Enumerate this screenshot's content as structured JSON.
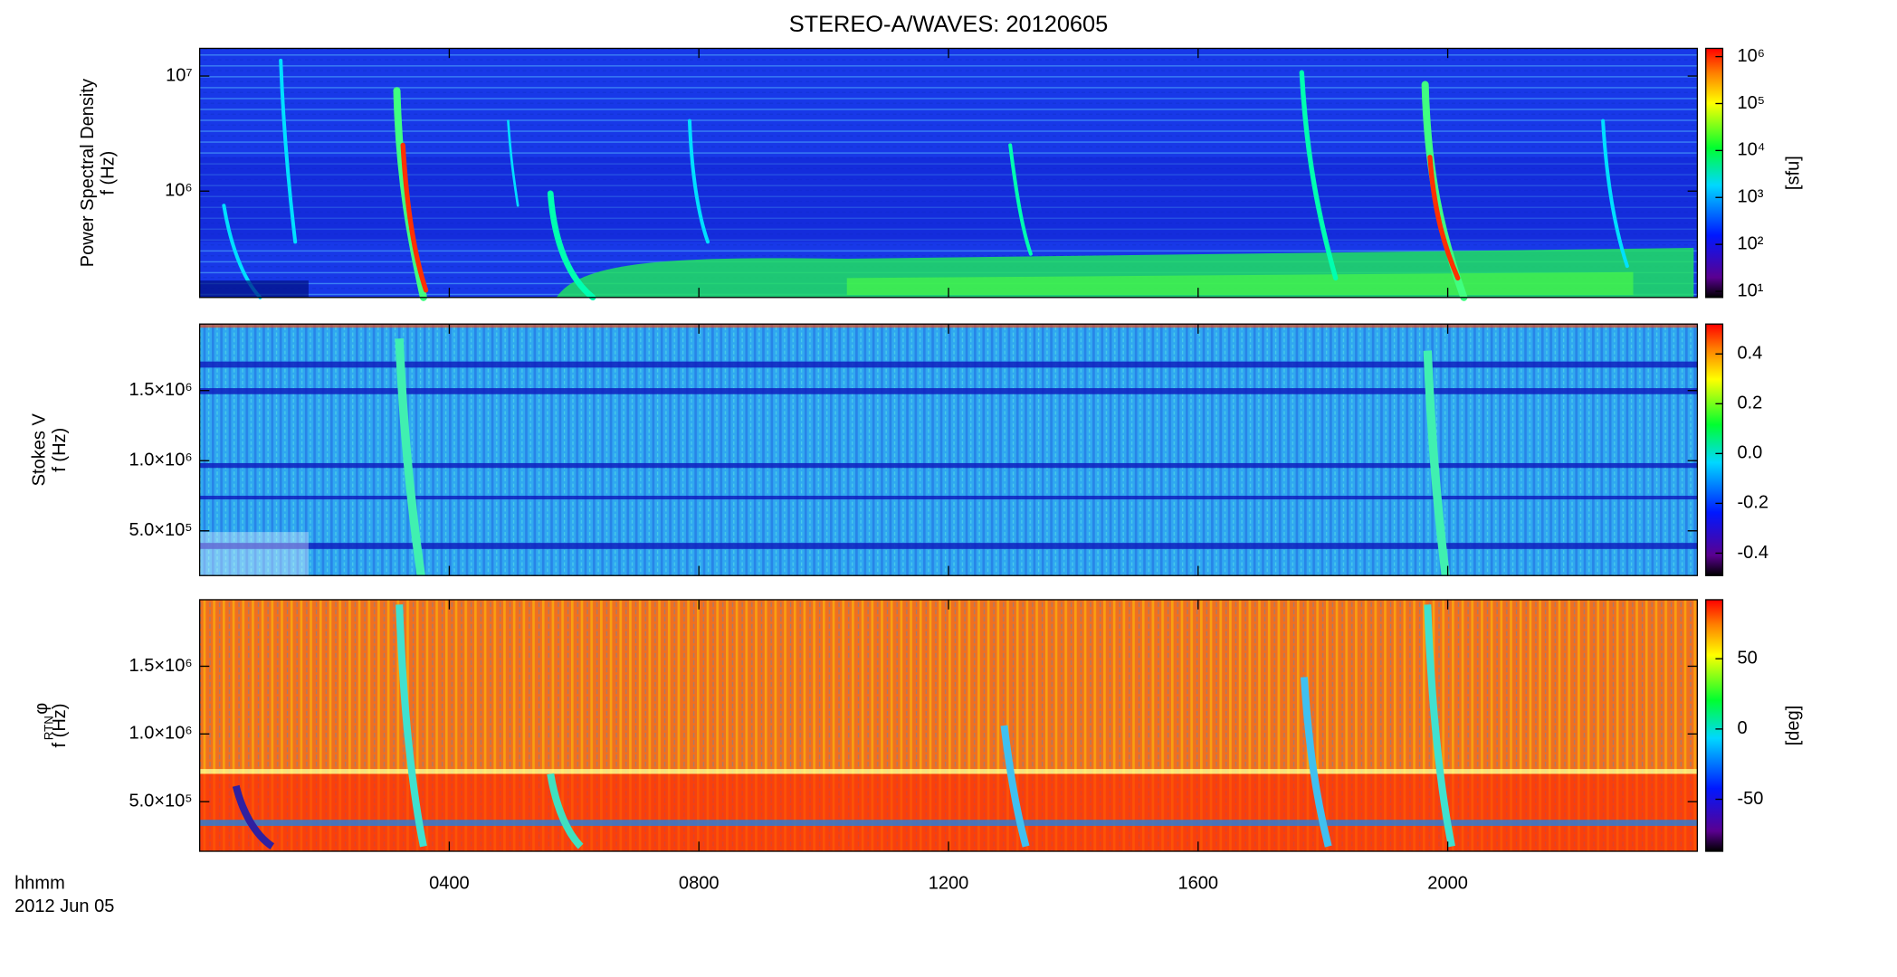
{
  "chart_data": [
    {
      "type": "spectrogram",
      "title": "STEREO-A/WAVES: 20120605",
      "ylabel": "Power Spectral Density",
      "ylabel2": "f (Hz)",
      "log_y": true,
      "ylim": [
        119000,
        17400000
      ],
      "yticks": [
        {
          "value": 1000000,
          "label": "10⁶"
        },
        {
          "value": 10000000,
          "label": "10⁷"
        }
      ],
      "xlim": [
        0,
        24
      ],
      "xticks": [
        4,
        8,
        12,
        16,
        20
      ],
      "colorbar": {
        "label": "[sfu]",
        "log": true,
        "clim": [
          7.4,
          1500000
        ],
        "ticks": [
          {
            "value": 10,
            "label": "10¹"
          },
          {
            "value": 100,
            "label": "10²"
          },
          {
            "value": 1000,
            "label": "10³"
          },
          {
            "value": 10000,
            "label": "10⁴"
          },
          {
            "value": 100000,
            "label": "10⁵"
          },
          {
            "value": 1000000,
            "label": "10⁶"
          }
        ]
      }
    },
    {
      "type": "spectrogram",
      "ylabel": "Stokes V",
      "ylabel2": "f (Hz)",
      "log_y": false,
      "ylim": [
        181000,
        1974000
      ],
      "yticks": [
        {
          "value": 500000,
          "label": "5.0×10⁵"
        },
        {
          "value": 1000000,
          "label": "1.0×10⁶"
        },
        {
          "value": 1500000,
          "label": "1.5×10⁶"
        }
      ],
      "xlim": [
        0,
        24
      ],
      "xticks": [
        4,
        8,
        12,
        16,
        20
      ],
      "colorbar": {
        "log": false,
        "clim": [
          -0.49,
          0.52
        ],
        "ticks": [
          -0.4,
          -0.2,
          {
            "value": 0,
            "label": "0.0"
          },
          0.2,
          0.4
        ]
      }
    },
    {
      "type": "spectrogram",
      "ylabel": "φ",
      "ylabel_sub": "RTN",
      "ylabel2": "f (Hz)",
      "log_y": false,
      "ylim": [
        134000,
        1991000
      ],
      "yticks": [
        {
          "value": 500000,
          "label": "5.0×10⁵"
        },
        {
          "value": 1000000,
          "label": "1.0×10⁶"
        },
        {
          "value": 1500000,
          "label": "1.5×10⁶"
        }
      ],
      "xlim": [
        0,
        24
      ],
      "xticks": [
        {
          "value": 4,
          "label": "0400"
        },
        {
          "value": 8,
          "label": "0800"
        },
        {
          "value": 12,
          "label": "1200"
        },
        {
          "value": 16,
          "label": "1600"
        },
        {
          "value": 20,
          "label": "2000"
        }
      ],
      "xlabel": "hhmm",
      "date": "2012 Jun 05",
      "colorbar": {
        "label": "[deg]",
        "log": false,
        "clim": [
          -87,
          92
        ],
        "ticks": [
          -50,
          0,
          50
        ]
      }
    }
  ]
}
